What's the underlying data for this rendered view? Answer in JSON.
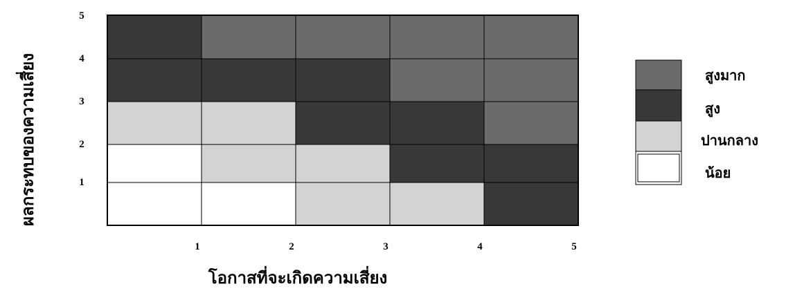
{
  "chart_data": {
    "type": "heatmap",
    "xlabel": "โอกาสที่จะเกิดความเสี่ยง",
    "ylabel": "ผลกระทบของความเสี่ยง",
    "x_ticks": [
      "1",
      "2",
      "3",
      "4",
      "5"
    ],
    "y_ticks": [
      "1",
      "2",
      "3",
      "4",
      "5"
    ],
    "xlim": [
      0,
      5
    ],
    "ylim": [
      0,
      5
    ],
    "grid": true,
    "legend_position": "right",
    "levels": [
      {
        "key": "very_high",
        "label": "สูงมาก",
        "color": "#6b6b6b"
      },
      {
        "key": "high",
        "label": "สูง",
        "color": "#383838"
      },
      {
        "key": "medium",
        "label": "ปานกลาง",
        "color": "#d3d3d3"
      },
      {
        "key": "low",
        "label": "น้อย",
        "color": "#ffffff"
      }
    ],
    "rows_top_to_bottom": [
      [
        "high",
        "very_high",
        "very_high",
        "very_high",
        "very_high"
      ],
      [
        "high",
        "high",
        "high",
        "very_high",
        "very_high"
      ],
      [
        "medium",
        "medium",
        "high",
        "high",
        "very_high"
      ],
      [
        "low",
        "medium",
        "medium",
        "high",
        "high"
      ],
      [
        "low",
        "low",
        "medium",
        "medium",
        "high"
      ]
    ]
  }
}
